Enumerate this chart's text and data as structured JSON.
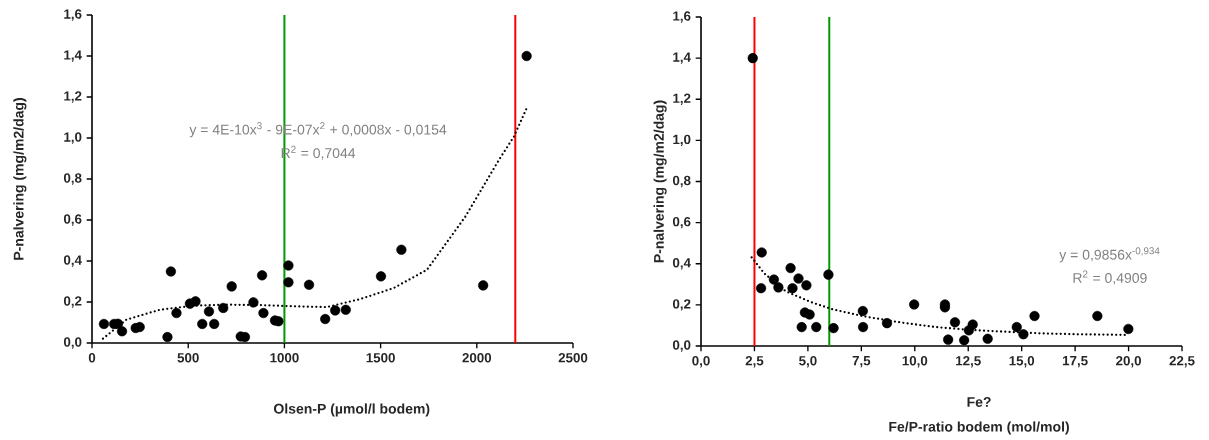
{
  "chart_data": [
    {
      "type": "scatter",
      "xlabel": "Olsen-P (µmol/l bodem)",
      "ylabel": "P-nalvering (mg/m2/dag)",
      "marker": "circle",
      "xlim": [
        0,
        2500
      ],
      "xticks": [
        0,
        500,
        1000,
        1500,
        2000,
        2500
      ],
      "ylim": [
        0,
        1.6
      ],
      "yticks": [
        {
          "value": 0,
          "label": "0,0"
        },
        {
          "value": 0.2,
          "label": "0,2"
        },
        {
          "value": 0.4,
          "label": "0,4"
        },
        {
          "value": 0.6,
          "label": "0,6"
        },
        {
          "value": 0.8,
          "label": "0,8"
        },
        {
          "value": 1.0,
          "label": "1,0"
        },
        {
          "value": 1.2,
          "label": "1,2"
        },
        {
          "value": 1.4,
          "label": "1,4"
        },
        {
          "value": 1.6,
          "label": "1,6"
        }
      ],
      "series": [
        {
          "color": "#000000",
          "x": [
            62,
            115,
            135,
            156,
            227,
            248,
            392,
            410,
            439,
            509,
            538,
            573,
            608,
            635,
            682,
            726,
            773,
            795,
            839,
            884,
            891,
            951,
            969,
            1021,
            1021,
            1128,
            1212,
            1264,
            1319,
            1502,
            1608,
            2033,
            2259
          ],
          "values": [
            0.093,
            0.093,
            0.094,
            0.057,
            0.073,
            0.078,
            0.029,
            0.349,
            0.146,
            0.192,
            0.203,
            0.093,
            0.154,
            0.093,
            0.171,
            0.276,
            0.032,
            0.029,
            0.198,
            0.33,
            0.146,
            0.11,
            0.106,
            0.378,
            0.296,
            0.284,
            0.117,
            0.159,
            0.162,
            0.325,
            0.455,
            0.281,
            1.4
          ]
        },
        {
          "type": "line",
          "color": "#000000",
          "line_style": "dotted",
          "marker": "none",
          "x": [
            57,
            179,
            352,
            526,
            700,
            873,
            1047,
            1220,
            1394,
            1568,
            1741,
            1941,
            2115,
            2193,
            2259
          ],
          "values": [
            0.021,
            0.114,
            0.162,
            0.182,
            0.187,
            0.185,
            0.179,
            0.175,
            0.214,
            0.268,
            0.357,
            0.617,
            0.893,
            1.007,
            1.145
          ]
        }
      ],
      "ref_lines": [
        {
          "axis": "x",
          "value": 1000,
          "color": "#009900"
        },
        {
          "axis": "x",
          "value": 2200,
          "color": "#ff0000"
        }
      ],
      "annotations": [
        "y = 4E-10x$^{3}$ - 9E-07x$^{2}$ + 0,0008x - 0,0154",
        "R$^{2}$ = 0,7044"
      ]
    },
    {
      "type": "scatter",
      "xlabel": "Fe/P-ratio bodem (mol/mol)",
      "ylabel": "P-nalvering (mg/m2/dag)",
      "marker": "circle",
      "xlim": [
        0,
        22.5
      ],
      "xticks": [
        {
          "value": 0,
          "label": "0,0"
        },
        {
          "value": 2.5,
          "label": "2,5"
        },
        {
          "value": 5,
          "label": "5,0"
        },
        {
          "value": 7.5,
          "label": "7,5"
        },
        {
          "value": 10,
          "label": "10,0"
        },
        {
          "value": 12.5,
          "label": "12,5"
        },
        {
          "value": 15,
          "label": "15,0"
        },
        {
          "value": 17.5,
          "label": "17,5"
        },
        {
          "value": 20,
          "label": "20,0"
        },
        {
          "value": 22.5,
          "label": "22,5"
        }
      ],
      "ylim": [
        0,
        1.6
      ],
      "yticks": [
        {
          "value": 0,
          "label": "0,0"
        },
        {
          "value": 0.2,
          "label": "0,2"
        },
        {
          "value": 0.4,
          "label": "0,4"
        },
        {
          "value": 0.6,
          "label": "0,6"
        },
        {
          "value": 0.8,
          "label": "0,8"
        },
        {
          "value": 1.0,
          "label": "1,0"
        },
        {
          "value": 1.2,
          "label": "1,2"
        },
        {
          "value": 1.4,
          "label": "1,4"
        },
        {
          "value": 1.6,
          "label": "1,6"
        }
      ],
      "series": [
        {
          "color": "#000000",
          "x": [
            2.42,
            2.84,
            2.81,
            3.41,
            3.62,
            4.19,
            4.28,
            4.56,
            4.93,
            4.86,
            5.08,
            4.71,
            5.39,
            5.96,
            6.2,
            7.57,
            7.58,
            8.7,
            9.97,
            11.41,
            11.41,
            11.56,
            11.88,
            12.31,
            12.53,
            12.71,
            13.41,
            14.77,
            15.08,
            15.6,
            18.54,
            19.99
          ],
          "values": [
            1.4,
            0.455,
            0.281,
            0.323,
            0.285,
            0.379,
            0.281,
            0.328,
            0.295,
            0.163,
            0.153,
            0.092,
            0.092,
            0.347,
            0.087,
            0.17,
            0.092,
            0.111,
            0.202,
            0.202,
            0.188,
            0.031,
            0.115,
            0.028,
            0.076,
            0.104,
            0.035,
            0.092,
            0.057,
            0.146,
            0.146,
            0.083
          ]
        },
        {
          "type": "line",
          "color": "#000000",
          "line_style": "dotted",
          "marker": "none",
          "x": [
            2.37,
            2.96,
            3.96,
            5.13,
            6.13,
            7.63,
            9.3,
            10.97,
            12.64,
            14.31,
            15.98,
            17.65,
            19.83
          ],
          "values": [
            0.431,
            0.353,
            0.266,
            0.214,
            0.179,
            0.144,
            0.115,
            0.092,
            0.078,
            0.069,
            0.061,
            0.057,
            0.054
          ]
        }
      ],
      "ref_lines": [
        {
          "axis": "x",
          "value": 2.5,
          "color": "#ff0000"
        },
        {
          "axis": "x",
          "value": 6.0,
          "color": "#009900"
        }
      ],
      "annotations": [
        "y = 0,9856x$^{-0,934}$",
        "R$^{2}$ = 0,4909",
        "Fe?"
      ]
    }
  ]
}
